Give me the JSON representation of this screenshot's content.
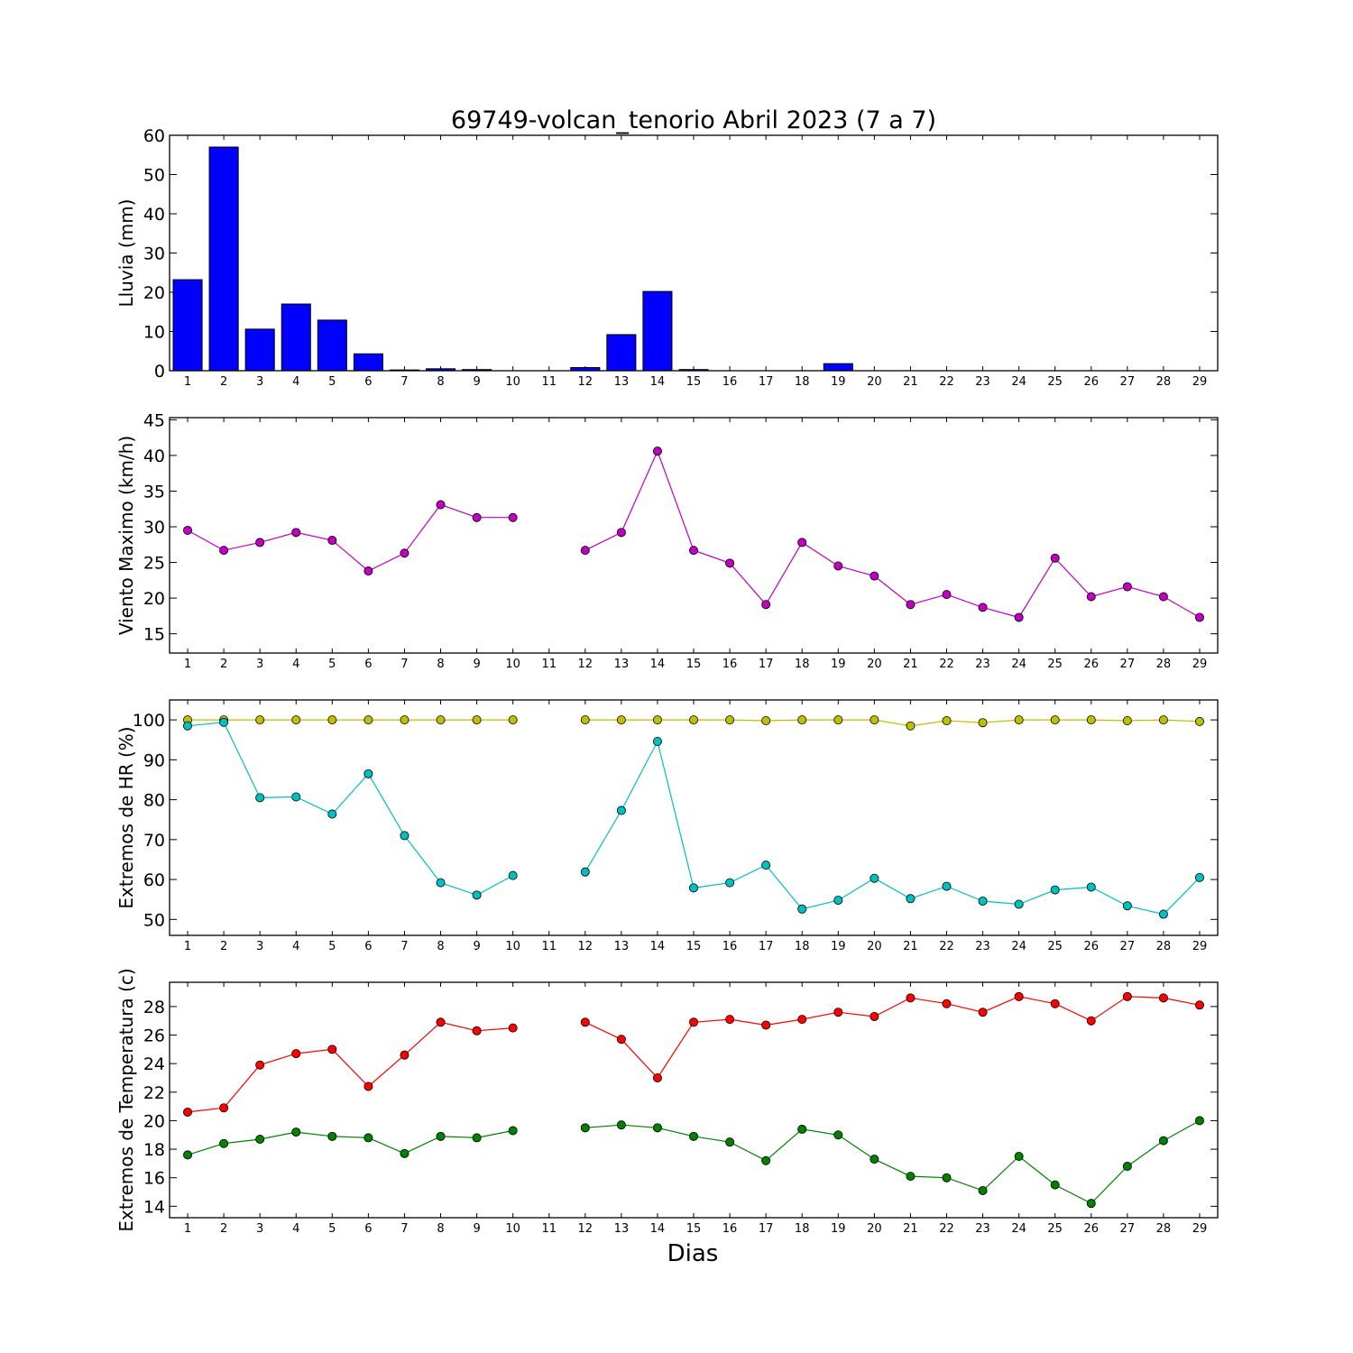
{
  "title": "69749-volcan_tenorio Abril 2023  (7 a 7)",
  "xlabel": "Dias",
  "chart_data": [
    {
      "type": "bar",
      "ylabel": "Lluvia (mm)",
      "ylim": [
        0,
        60
      ],
      "yticks": [
        0,
        10,
        20,
        30,
        40,
        50,
        60
      ],
      "categories": [
        1,
        2,
        3,
        4,
        5,
        6,
        7,
        8,
        9,
        10,
        11,
        12,
        13,
        14,
        15,
        16,
        17,
        18,
        19,
        20,
        21,
        22,
        23,
        24,
        25,
        26,
        27,
        28,
        29
      ],
      "values": [
        23.2,
        57.0,
        10.6,
        17.0,
        12.9,
        4.3,
        0.2,
        0.5,
        0.3,
        0.0,
        null,
        0.8,
        9.2,
        20.2,
        0.3,
        0.0,
        0.0,
        0.0,
        1.8,
        0.0,
        0.0,
        0.0,
        0.0,
        0.0,
        0.0,
        0.0,
        0.0,
        0.0,
        0.0
      ],
      "color": "#0000ff"
    },
    {
      "type": "line",
      "ylabel": "Viento Maximo (km/h)",
      "ylim": [
        12.3,
        45.3
      ],
      "yticks": [
        15,
        20,
        25,
        30,
        35,
        40,
        45
      ],
      "x": [
        1,
        2,
        3,
        4,
        5,
        6,
        7,
        8,
        9,
        10,
        11,
        12,
        13,
        14,
        15,
        16,
        17,
        18,
        19,
        20,
        21,
        22,
        23,
        24,
        25,
        26,
        27,
        28,
        29
      ],
      "series": [
        {
          "color": "#bf00bf",
          "values": [
            29.5,
            26.7,
            27.8,
            29.2,
            28.1,
            23.8,
            26.3,
            33.1,
            31.3,
            31.3,
            null,
            26.7,
            29.2,
            40.6,
            26.7,
            24.9,
            19.1,
            27.8,
            24.5,
            23.1,
            19.1,
            20.5,
            18.7,
            17.3,
            25.6,
            20.2,
            21.6,
            20.2,
            17.3
          ]
        }
      ]
    },
    {
      "type": "line",
      "ylabel": "Extremos de HR (%)",
      "ylim": [
        46,
        105
      ],
      "yticks": [
        50,
        60,
        70,
        80,
        90,
        100
      ],
      "x": [
        1,
        2,
        3,
        4,
        5,
        6,
        7,
        8,
        9,
        10,
        11,
        12,
        13,
        14,
        15,
        16,
        17,
        18,
        19,
        20,
        21,
        22,
        23,
        24,
        25,
        26,
        27,
        28,
        29
      ],
      "series": [
        {
          "color": "#bfbf00",
          "values": [
            100,
            100,
            100,
            100,
            100,
            100,
            100,
            100,
            100,
            100,
            null,
            100,
            100,
            100,
            100,
            100,
            99.8,
            100,
            100,
            100,
            98.5,
            99.8,
            99.3,
            100,
            100,
            100,
            99.8,
            100,
            99.6
          ]
        },
        {
          "color": "#00bfbf",
          "values": [
            98.5,
            99.4,
            80.5,
            80.7,
            76.4,
            86.5,
            71.0,
            59.2,
            56.1,
            61.0,
            null,
            61.9,
            77.3,
            94.6,
            57.9,
            59.2,
            63.6,
            52.6,
            54.8,
            60.3,
            55.2,
            58.3,
            54.6,
            53.8,
            57.4,
            58.1,
            53.4,
            51.3,
            60.5
          ]
        }
      ]
    },
    {
      "type": "line",
      "ylabel": "Extremos de Temperatura (c)",
      "ylim": [
        13.2,
        29.7
      ],
      "yticks": [
        14,
        16,
        18,
        20,
        22,
        24,
        26,
        28
      ],
      "x": [
        1,
        2,
        3,
        4,
        5,
        6,
        7,
        8,
        9,
        10,
        11,
        12,
        13,
        14,
        15,
        16,
        17,
        18,
        19,
        20,
        21,
        22,
        23,
        24,
        25,
        26,
        27,
        28,
        29
      ],
      "series": [
        {
          "color": "#ff0000",
          "values": [
            20.6,
            20.9,
            23.9,
            24.7,
            25.0,
            22.4,
            24.6,
            26.9,
            26.3,
            26.5,
            null,
            26.9,
            25.7,
            23.0,
            26.9,
            27.1,
            26.7,
            27.1,
            27.6,
            27.3,
            28.6,
            28.2,
            27.6,
            28.7,
            28.2,
            27.0,
            28.7,
            28.6,
            28.1
          ]
        },
        {
          "color": "#008000",
          "values": [
            17.6,
            18.4,
            18.7,
            19.2,
            18.9,
            18.8,
            17.7,
            18.9,
            18.8,
            19.3,
            null,
            19.5,
            19.7,
            19.5,
            18.9,
            18.5,
            17.2,
            19.4,
            19.0,
            17.3,
            16.1,
            16.0,
            15.1,
            17.5,
            15.5,
            14.2,
            16.8,
            18.6,
            20.0
          ]
        }
      ]
    }
  ]
}
